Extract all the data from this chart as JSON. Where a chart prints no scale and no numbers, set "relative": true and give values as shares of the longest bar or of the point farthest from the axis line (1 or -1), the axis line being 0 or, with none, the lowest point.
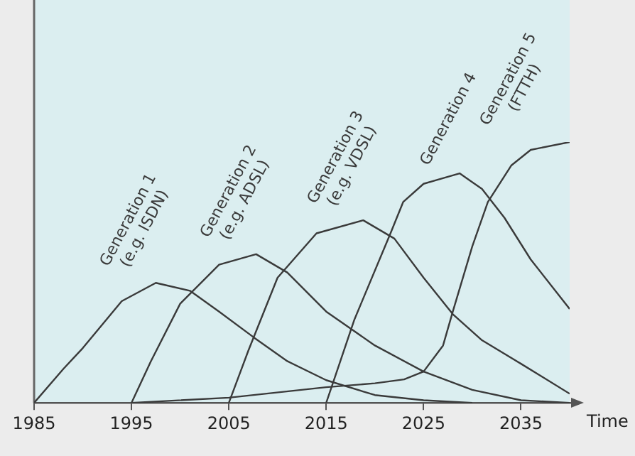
{
  "chart_data": {
    "type": "line",
    "relative": true,
    "xlabel": "Time",
    "xlim": [
      1985,
      2040
    ],
    "xticks": [
      1985,
      1995,
      2005,
      2015,
      2025,
      2035
    ],
    "grid": false,
    "legend": false,
    "marker": "none",
    "line_style": "solid",
    "series": [
      {
        "name": "Generation 1\n(e.g. ISDN)",
        "color": "#3a3a3a",
        "x": [
          1985,
          1988,
          1990,
          1994,
          1997.5,
          2001,
          2004,
          2007.6,
          2011,
          2015,
          2020,
          2025,
          2030
        ],
        "values": [
          0,
          0.13,
          0.21,
          0.39,
          0.46,
          0.43,
          0.35,
          0.25,
          0.16,
          0.087,
          0.03,
          0.01,
          0
        ]
      },
      {
        "name": "Generation 2\n(e.g. ADSL)",
        "color": "#3a3a3a",
        "x": [
          1995,
          1997,
          2000,
          2004,
          2007.8,
          2011,
          2015,
          2020,
          2025,
          2030,
          2035,
          2040
        ],
        "values": [
          0,
          0.16,
          0.38,
          0.53,
          0.57,
          0.5,
          0.35,
          0.22,
          0.12,
          0.05,
          0.01,
          0
        ]
      },
      {
        "name": "Generation 3\n(e.g. VDSL)",
        "color": "#3a3a3a",
        "x": [
          2005,
          2007,
          2010,
          2014,
          2018.8,
          2022,
          2025,
          2028,
          2031,
          2035,
          2040
        ],
        "values": [
          0,
          0.2,
          0.48,
          0.65,
          0.7,
          0.63,
          0.48,
          0.34,
          0.24,
          0.15,
          0.035
        ]
      },
      {
        "name": "Generation 4",
        "color": "#3a3a3a",
        "x": [
          2015,
          2017.9,
          2021.6,
          2022.9,
          2025,
          2028.7,
          2031,
          2033.3,
          2036,
          2040
        ],
        "values": [
          0,
          0.32,
          0.65,
          0.77,
          0.84,
          0.88,
          0.82,
          0.71,
          0.55,
          0.36
        ]
      },
      {
        "name": "Generation 5\n(FTTH)",
        "color": "#3a3a3a",
        "x": [
          1995,
          2005,
          2015,
          2020,
          2023,
          2025,
          2027,
          2028,
          2030,
          2031.6,
          2034,
          2036,
          2040
        ],
        "values": [
          0,
          0.02,
          0.06,
          0.075,
          0.09,
          0.12,
          0.22,
          0.35,
          0.6,
          0.77,
          0.91,
          0.97,
          1.0
        ]
      }
    ]
  }
}
